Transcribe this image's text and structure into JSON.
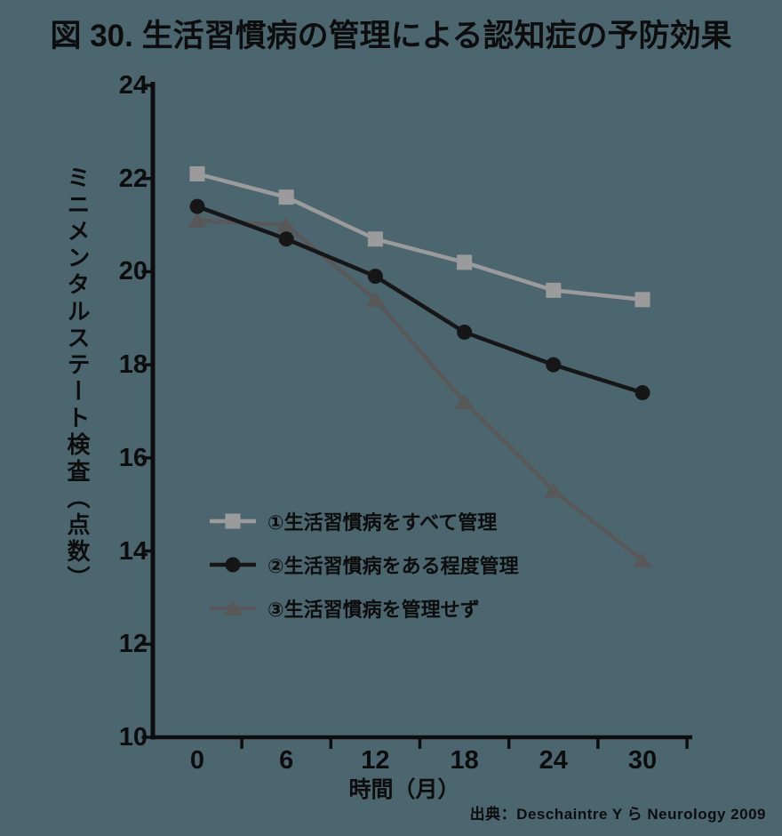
{
  "title": "図 30. 生活習慣病の管理による認知症の予防効果",
  "source": "出典：Deschaintre Y ら Neurology 2009",
  "colors": {
    "background": "#4c666f",
    "ink": "#0d0d0d"
  },
  "chart_data": {
    "type": "line",
    "title": "図 30. 生活習慣病の管理による認知症の予防効果",
    "xlabel": "時間（月）",
    "ylabel": "ミニメンタルステート検査（点数）",
    "x": [
      0,
      6,
      12,
      18,
      24,
      30
    ],
    "xtick_labels": [
      "0",
      "6",
      "12",
      "18",
      "24",
      "30"
    ],
    "yticks": [
      10,
      12,
      14,
      16,
      18,
      20,
      22,
      24
    ],
    "ylim": [
      10,
      24
    ],
    "xlim": [
      -3,
      33
    ],
    "grid": false,
    "legend_position": "inside-left-middle",
    "series": [
      {
        "name": "①生活習慣病をすべて管理",
        "marker": "square",
        "color": "#9b9b9b",
        "values": [
          22.1,
          21.6,
          20.7,
          20.2,
          19.6,
          19.4
        ]
      },
      {
        "name": "②生活習慣病をある程度管理",
        "marker": "circle",
        "color": "#161616",
        "values": [
          21.4,
          20.7,
          19.9,
          18.7,
          18.0,
          17.4
        ]
      },
      {
        "name": "③生活習慣病を管理せず",
        "marker": "triangle",
        "color": "#585858",
        "values": [
          21.1,
          21.0,
          19.4,
          17.2,
          15.3,
          13.8
        ]
      }
    ]
  }
}
